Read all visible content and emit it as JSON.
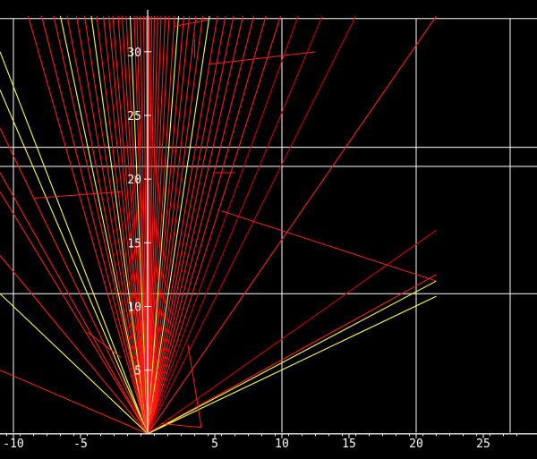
{
  "chart_data": {
    "type": "line",
    "title": "",
    "xlabel": "",
    "ylabel": "",
    "xlim": [
      -11,
      29
    ],
    "ylim": [
      -0.5,
      33.5
    ],
    "x_ticks": [
      -10,
      -5,
      5,
      10,
      15,
      20,
      25
    ],
    "x_tick_labels": [
      "-10",
      "-5",
      "5",
      "10",
      "15",
      "20",
      "25"
    ],
    "y_ticks": [
      30,
      25,
      20,
      15,
      10,
      5
    ],
    "y_tick_labels": [
      "30",
      "25",
      "20",
      "15",
      "10",
      "5"
    ],
    "extra_grid_x": [
      -10,
      10,
      20,
      27
    ],
    "extra_grid_y": [
      22.5,
      21,
      11
    ],
    "grid_color": "#ffffff",
    "background": "#000000",
    "origin": [
      0,
      0
    ],
    "ray_colors": {
      "red": "#ff1a1a",
      "dark_red": "#cc0000",
      "yellow": "#ffff33"
    },
    "rays": [
      {
        "end": [
          -8.9,
          32.8
        ],
        "color": "red"
      },
      {
        "end": [
          -7.9,
          32.8
        ],
        "color": "red"
      },
      {
        "end": [
          -7.0,
          32.8
        ],
        "color": "red"
      },
      {
        "end": [
          -6.5,
          32.8
        ],
        "color": "yellow"
      },
      {
        "end": [
          -6.0,
          32.8
        ],
        "color": "red"
      },
      {
        "end": [
          -5.3,
          32.8
        ],
        "color": "red"
      },
      {
        "end": [
          -4.7,
          32.8
        ],
        "color": "red"
      },
      {
        "end": [
          -4.2,
          32.8
        ],
        "color": "yellow"
      },
      {
        "end": [
          -3.8,
          32.8
        ],
        "color": "red"
      },
      {
        "end": [
          -3.3,
          32.8
        ],
        "color": "red"
      },
      {
        "end": [
          -2.9,
          32.8
        ],
        "color": "red"
      },
      {
        "end": [
          -2.6,
          32.8
        ],
        "color": "red"
      },
      {
        "end": [
          -2.2,
          32.8
        ],
        "color": "red"
      },
      {
        "end": [
          -1.9,
          32.8
        ],
        "color": "red"
      },
      {
        "end": [
          -1.6,
          32.8
        ],
        "color": "red"
      },
      {
        "end": [
          -1.3,
          32.8
        ],
        "color": "yellow"
      },
      {
        "end": [
          -1.0,
          32.8
        ],
        "color": "red"
      },
      {
        "end": [
          -0.8,
          32.8
        ],
        "color": "red"
      },
      {
        "end": [
          -0.55,
          32.8
        ],
        "color": "red"
      },
      {
        "end": [
          -0.3,
          32.8
        ],
        "color": "red"
      },
      {
        "end": [
          -0.1,
          32.8
        ],
        "color": "red"
      },
      {
        "end": [
          0.1,
          32.8
        ],
        "color": "red"
      },
      {
        "end": [
          0.3,
          32.8
        ],
        "color": "red"
      },
      {
        "end": [
          0.5,
          32.8
        ],
        "color": "red"
      },
      {
        "end": [
          0.75,
          32.8
        ],
        "color": "red"
      },
      {
        "end": [
          1.0,
          32.8
        ],
        "color": "red"
      },
      {
        "end": [
          1.3,
          32.8
        ],
        "color": "red"
      },
      {
        "end": [
          1.6,
          32.8
        ],
        "color": "red"
      },
      {
        "end": [
          2.0,
          32.8
        ],
        "color": "red"
      },
      {
        "end": [
          2.3,
          32.8
        ],
        "color": "yellow"
      },
      {
        "end": [
          2.7,
          32.8
        ],
        "color": "red"
      },
      {
        "end": [
          3.1,
          32.8
        ],
        "color": "red"
      },
      {
        "end": [
          3.6,
          32.8
        ],
        "color": "red"
      },
      {
        "end": [
          4.1,
          32.8
        ],
        "color": "red"
      },
      {
        "end": [
          4.6,
          32.8
        ],
        "color": "yellow"
      },
      {
        "end": [
          5.2,
          32.8
        ],
        "color": "red"
      },
      {
        "end": [
          5.8,
          32.8
        ],
        "color": "red"
      },
      {
        "end": [
          6.4,
          32.8
        ],
        "color": "red"
      },
      {
        "end": [
          7.1,
          32.8
        ],
        "color": "red"
      },
      {
        "end": [
          7.9,
          32.8
        ],
        "color": "red"
      },
      {
        "end": [
          8.8,
          32.8
        ],
        "color": "red"
      },
      {
        "end": [
          9.9,
          32.8
        ],
        "color": "red"
      },
      {
        "end": [
          11.2,
          32.8
        ],
        "color": "dark_red"
      },
      {
        "end": [
          13.0,
          32.8
        ],
        "color": "dark_red"
      },
      {
        "end": [
          15.5,
          32.8
        ],
        "color": "dark_red"
      },
      {
        "end": [
          21.5,
          32.8
        ],
        "color": "red"
      },
      {
        "end": [
          -11.0,
          30.0
        ],
        "color": "yellow"
      },
      {
        "end": [
          -11.0,
          27.0
        ],
        "color": "yellow"
      },
      {
        "end": [
          -11.0,
          24.0
        ],
        "color": "red"
      },
      {
        "end": [
          -11.0,
          20.5
        ],
        "color": "red"
      },
      {
        "end": [
          -11.0,
          19.0
        ],
        "color": "red"
      },
      {
        "end": [
          -11.0,
          14.0
        ],
        "color": "red"
      },
      {
        "end": [
          -11.0,
          11.0
        ],
        "color": "yellow"
      },
      {
        "end": [
          -11.0,
          5.0
        ],
        "color": "red"
      },
      {
        "end": [
          21.5,
          16.0
        ],
        "color": "dark_red"
      },
      {
        "end": [
          21.5,
          12.5
        ],
        "color": "red"
      },
      {
        "end": [
          21.5,
          12.0
        ],
        "color": "yellow"
      },
      {
        "end": [
          21.5,
          10.8
        ],
        "color": "yellow"
      }
    ],
    "segments": [
      {
        "from": [
          5.5,
          17.5
        ],
        "to": [
          21.5,
          12.0
        ],
        "color": "red"
      },
      {
        "from": [
          -8.5,
          18.5
        ],
        "to": [
          -2.0,
          19.0
        ],
        "color": "red"
      },
      {
        "from": [
          4.5,
          29.0
        ],
        "to": [
          12.5,
          30.0
        ],
        "color": "red"
      },
      {
        "from": [
          3.5,
          29.5
        ],
        "to": [
          3.5,
          31.0
        ],
        "color": "red"
      },
      {
        "from": [
          2.0,
          32.0
        ],
        "to": [
          4.5,
          32.5
        ],
        "color": "red"
      },
      {
        "from": [
          -4.5,
          8.0
        ],
        "to": [
          -2.0,
          6.0
        ],
        "color": "red"
      },
      {
        "from": [
          3.0,
          7.0
        ],
        "to": [
          4.0,
          0.5
        ],
        "color": "red"
      },
      {
        "from": [
          4.0,
          0.5
        ],
        "to": [
          1.0,
          0.8
        ],
        "color": "red"
      },
      {
        "from": [
          5.0,
          20.5
        ],
        "to": [
          6.5,
          20.5
        ],
        "color": "red"
      }
    ]
  }
}
